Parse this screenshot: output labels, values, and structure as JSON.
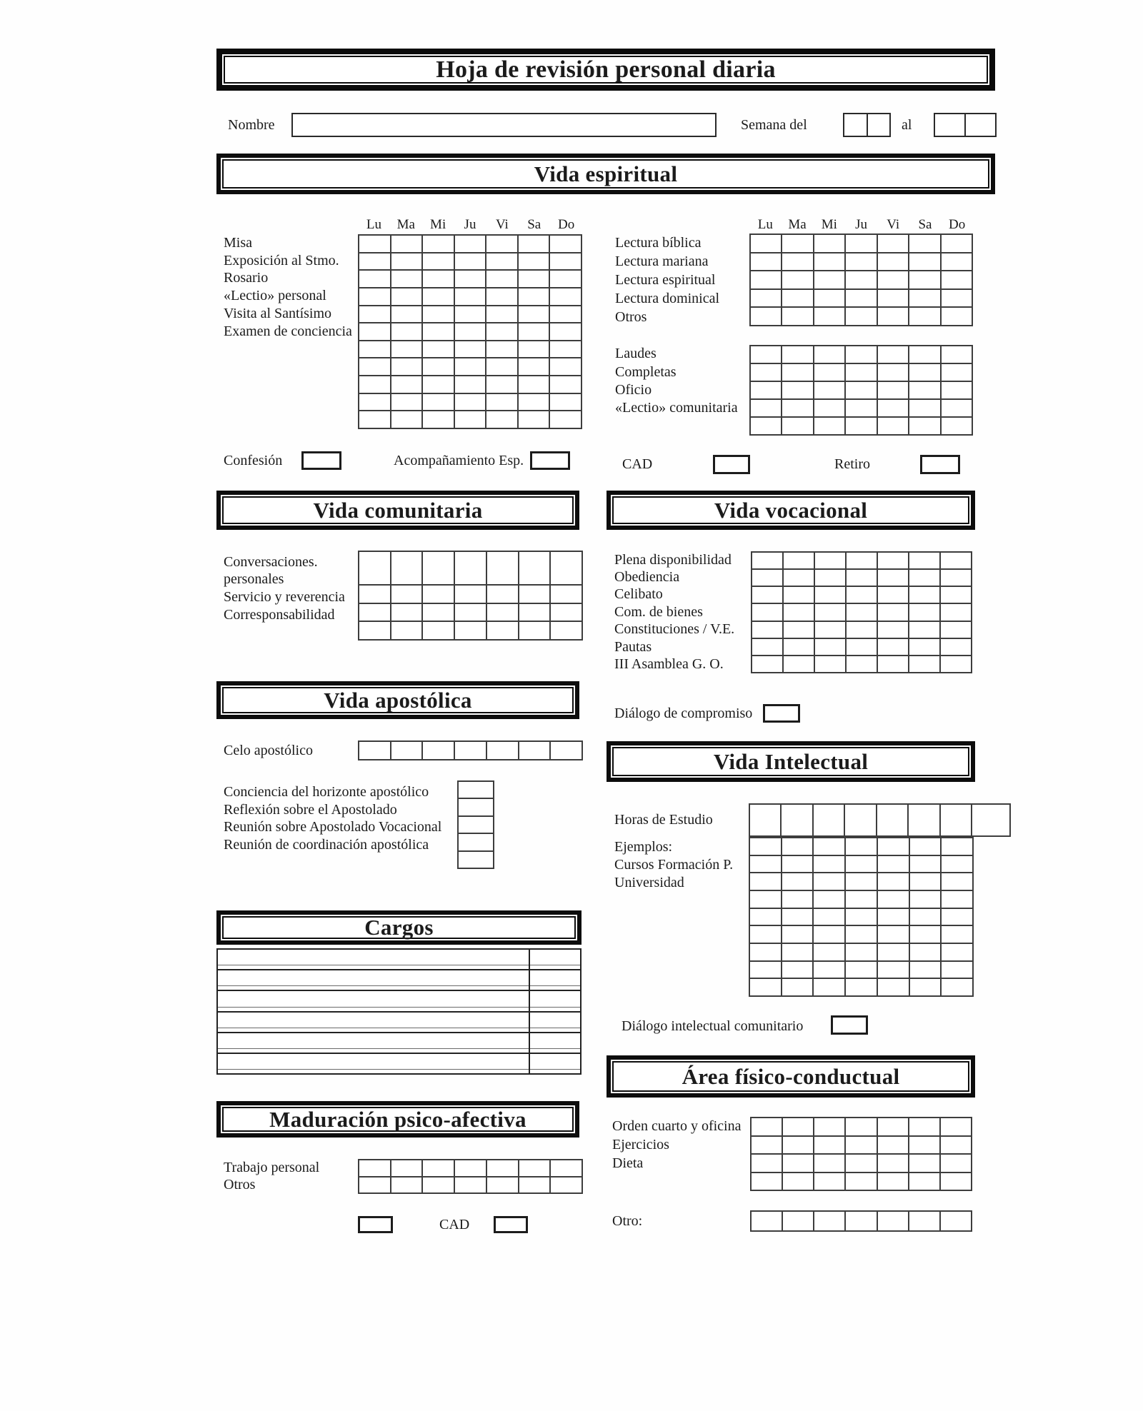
{
  "header": {
    "title": "Hoja de revisión personal diaria",
    "name_label": "Nombre",
    "week_from_label": "Semana del",
    "week_to_label": "al"
  },
  "days": [
    "Lu",
    "Ma",
    "Mi",
    "Ju",
    "Vi",
    "Sa",
    "Do"
  ],
  "spiritual": {
    "title": "Vida espiritual",
    "left_rows": [
      "Misa",
      "Exposición al Stmo.",
      "Rosario",
      "«Lectio» personal",
      "Visita al Santísimo",
      "Examen de conciencia"
    ],
    "reading_rows": [
      "Lectura bíblica",
      "Lectura mariana",
      "Lectura espiritual",
      "Lectura dominical",
      "Otros"
    ],
    "office_rows": [
      "Laudes",
      "Completas",
      "Oficio",
      "«Lectio» comunitaria"
    ],
    "confession_label": "Confesión",
    "accompaniment_label": "Acompañamiento Esp.",
    "cad_label": "CAD",
    "retreat_label": "Retiro"
  },
  "community": {
    "title": "Vida comunitaria",
    "rows": [
      "Conversaciones.",
      "personales",
      "Servicio y reverencia",
      "Corresponsabilidad"
    ]
  },
  "vocational": {
    "title": "Vida vocacional",
    "rows": [
      "Plena disponibilidad",
      "Obediencia",
      "Celibato",
      "Com. de bienes",
      "Constituciones / V.E.",
      "Pautas",
      "III Asamblea G. O."
    ],
    "dialog_label": "Diálogo de compromiso"
  },
  "apostolic": {
    "title": "Vida apostólica",
    "zeal_label": "Celo apostólico",
    "meeting_rows": [
      "Conciencia del horizonte apostólico",
      "Reflexión sobre el Apostolado",
      "Reunión sobre Apostolado Vocacional",
      "Reunión de coordinación apostólica"
    ]
  },
  "intellectual": {
    "title": "Vida Intelectual",
    "hours_label": "Horas de Estudio",
    "examples_label": "Ejemplos:",
    "example_rows": [
      "Cursos Formación P.",
      "Universidad"
    ],
    "dialog_label": "Diálogo intelectual comunitario"
  },
  "charges": {
    "title": "Cargos"
  },
  "maturation": {
    "title": "Maduración psico-afectiva",
    "rows": [
      "Trabajo personal",
      "Otros"
    ],
    "cad_label": "CAD"
  },
  "physical": {
    "title": "Área físico-conductual",
    "rows": [
      "Orden cuarto y oficina",
      "Ejercicios",
      "Dieta"
    ],
    "other_label": "Otro:"
  }
}
